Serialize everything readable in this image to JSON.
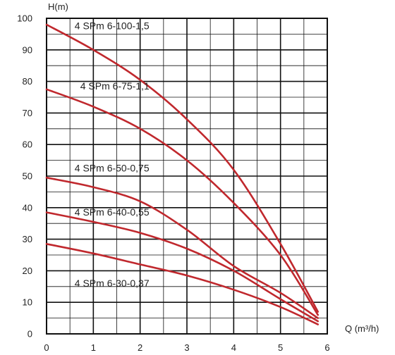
{
  "chart_data": {
    "type": "line",
    "ylabel": "H(m)",
    "xlabel": "Q (m³/h)",
    "xlim": [
      0,
      6
    ],
    "ylim": [
      0,
      100
    ],
    "x_ticks": [
      "0",
      "1",
      "2",
      "3",
      "4",
      "5",
      "6"
    ],
    "y_ticks": [
      "0",
      "10",
      "20",
      "30",
      "40",
      "50",
      "60",
      "70",
      "80",
      "90",
      "100"
    ],
    "grid": true,
    "colors": {
      "series": "#c0282d",
      "grid": "#111111",
      "background": "#ffffff"
    },
    "series": [
      {
        "name": "4 SPm 6-100-1,5",
        "label_at": [
          0.6,
          96.5
        ],
        "points": [
          [
            0,
            98
          ],
          [
            1,
            90
          ],
          [
            2,
            80.5
          ],
          [
            3,
            68
          ],
          [
            4,
            52
          ],
          [
            5,
            28.5
          ],
          [
            5.8,
            7
          ]
        ]
      },
      {
        "name": "4 SPm 6-75-1,1",
        "label_at": [
          0.72,
          77.5
        ],
        "points": [
          [
            0,
            77.5
          ],
          [
            1,
            72
          ],
          [
            2,
            65
          ],
          [
            3,
            55
          ],
          [
            4,
            41.5
          ],
          [
            5,
            25
          ],
          [
            5.8,
            6
          ]
        ]
      },
      {
        "name": "4 SPm 6-50-0,75",
        "label_at": [
          0.6,
          51.5
        ],
        "points": [
          [
            0,
            49.5
          ],
          [
            1,
            46.5
          ],
          [
            2,
            42
          ],
          [
            3,
            33
          ],
          [
            4,
            21.5
          ],
          [
            5,
            13
          ],
          [
            5.8,
            5
          ]
        ]
      },
      {
        "name": "4 SPm 6-40-0,55",
        "label_at": [
          0.6,
          37.5
        ],
        "points": [
          [
            0,
            38.5
          ],
          [
            1,
            35.5
          ],
          [
            2,
            32
          ],
          [
            3,
            27
          ],
          [
            4,
            20
          ],
          [
            5,
            11
          ],
          [
            5.8,
            4
          ]
        ]
      },
      {
        "name": "4 SPm 6-30-0,37",
        "label_at": [
          0.6,
          15
        ],
        "points": [
          [
            0,
            28.5
          ],
          [
            1,
            25.5
          ],
          [
            2,
            22
          ],
          [
            3,
            18.5
          ],
          [
            4,
            14
          ],
          [
            5,
            8.5
          ],
          [
            5.8,
            3
          ]
        ]
      }
    ]
  }
}
